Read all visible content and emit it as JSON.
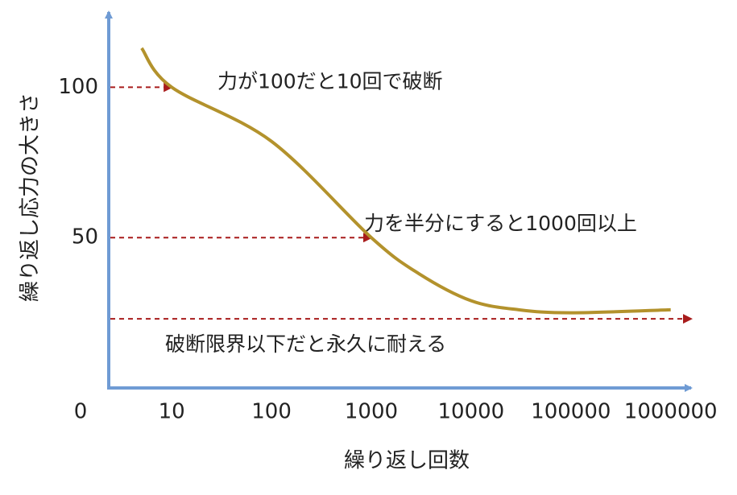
{
  "chart_data": {
    "type": "line",
    "x_label": "繰り返し回数",
    "y_label": "繰り返し応力の大きさ",
    "origin_label": "0",
    "log_x": true,
    "xlim": [
      2.34,
      1600000
    ],
    "xticks": [
      10,
      100,
      1000,
      10000,
      100000,
      1000000
    ],
    "ylim": [
      0,
      125
    ],
    "yticks": [
      50,
      100
    ],
    "axis_color": "#6f9bd4",
    "series": [
      {
        "color": "#b3922c",
        "x": [
          5,
          10,
          100,
          1000,
          3000,
          10000,
          30000,
          100000,
          1000000
        ],
        "values": [
          113,
          100,
          82,
          50,
          38,
          29,
          26,
          25,
          26
        ]
      }
    ],
    "reference_color": "#a81c1c",
    "references": [
      {
        "y": 100,
        "x_end": 10,
        "label": "力が100だと10回で破断"
      },
      {
        "y": 50,
        "x_end": 1000,
        "label": "力を半分にすると1000回以上"
      },
      {
        "y": 23,
        "x_end": 1600000,
        "label": "破断限界以下だと永久に耐える"
      }
    ]
  }
}
